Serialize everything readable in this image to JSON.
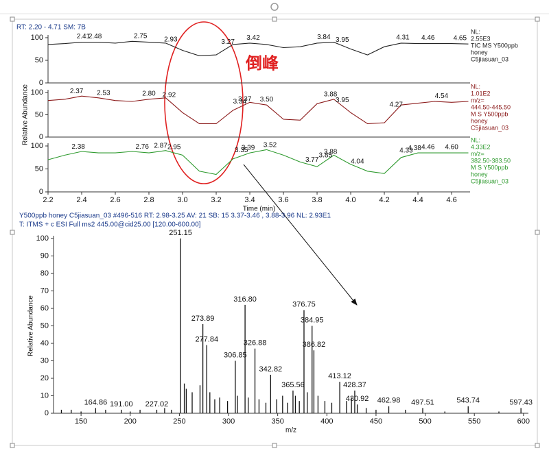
{
  "rt_header": "RT: 2.20 - 4.71   SM: 7B",
  "annotation": "倒峰",
  "chart_data": [
    {
      "type": "line",
      "color": "#222222",
      "xlim": [
        2.2,
        4.71
      ],
      "ylim": [
        0,
        100
      ],
      "yticks": [
        0,
        50,
        100
      ],
      "x": [
        2.2,
        2.3,
        2.4,
        2.5,
        2.6,
        2.7,
        2.8,
        2.9,
        3.0,
        3.1,
        3.2,
        3.3,
        3.4,
        3.5,
        3.6,
        3.7,
        3.8,
        3.9,
        4.0,
        4.1,
        4.2,
        4.3,
        4.4,
        4.5,
        4.6,
        4.7
      ],
      "values": [
        85,
        87,
        90,
        90,
        88,
        92,
        90,
        88,
        72,
        60,
        62,
        85,
        88,
        85,
        78,
        80,
        88,
        90,
        75,
        62,
        80,
        88,
        87,
        87,
        87,
        86
      ],
      "peak_labels": [
        2.41,
        2.48,
        2.75,
        2.93,
        3.27,
        3.42,
        3.84,
        3.95,
        4.31,
        4.46,
        4.65
      ],
      "info": [
        "NL:",
        "2.55E3",
        "TIC MS Y500ppb",
        " honey",
        "C5jiasuan_03"
      ]
    },
    {
      "type": "line",
      "color": "#8b1a1a",
      "xlim": [
        2.2,
        4.71
      ],
      "ylim": [
        0,
        100
      ],
      "yticks": [
        0,
        50,
        100
      ],
      "ylabel": "Relative Abundance",
      "x": [
        2.2,
        2.3,
        2.4,
        2.5,
        2.6,
        2.7,
        2.8,
        2.9,
        3.0,
        3.1,
        3.2,
        3.3,
        3.4,
        3.5,
        3.6,
        3.7,
        3.8,
        3.9,
        4.0,
        4.1,
        4.2,
        4.3,
        4.4,
        4.5,
        4.6,
        4.7
      ],
      "values": [
        82,
        85,
        92,
        88,
        82,
        80,
        85,
        88,
        55,
        30,
        30,
        60,
        78,
        72,
        40,
        38,
        75,
        85,
        55,
        30,
        32,
        72,
        76,
        80,
        78,
        80
      ],
      "peak_labels": [
        2.37,
        2.53,
        {
          "value": 2.8,
          "label": "2.80"
        },
        2.92,
        3.34,
        3.37,
        {
          "value": 3.5,
          "label": "3.50"
        },
        3.88,
        3.95,
        4.27,
        4.54
      ],
      "info": [
        "NL:",
        "1.01E2",
        "m/z=",
        "444.50-445.50",
        "M S Y500ppb",
        "honey",
        "C5jiasuan_03"
      ]
    },
    {
      "type": "line",
      "color": "#2e9a2e",
      "xlim": [
        2.2,
        4.71
      ],
      "ylim": [
        0,
        100
      ],
      "yticks": [
        0,
        50,
        100
      ],
      "xticks": [
        2.2,
        2.4,
        2.6,
        2.8,
        {
          "value": 3,
          "label": "3.0"
        },
        3.2,
        3.4,
        3.6,
        3.8,
        {
          "value": 4,
          "label": "4.0"
        },
        4.2,
        4.4,
        4.6
      ],
      "xlabel": "Time (min)",
      "x": [
        2.2,
        2.3,
        2.4,
        2.5,
        2.6,
        2.7,
        2.8,
        2.9,
        3.0,
        3.1,
        3.2,
        3.3,
        3.4,
        3.5,
        3.6,
        3.7,
        3.8,
        3.9,
        4.0,
        4.1,
        4.2,
        4.3,
        4.4,
        4.5,
        4.6,
        4.7
      ],
      "values": [
        70,
        80,
        88,
        85,
        85,
        88,
        85,
        90,
        80,
        45,
        38,
        72,
        85,
        92,
        80,
        65,
        55,
        80,
        60,
        45,
        40,
        75,
        85,
        85,
        85,
        85
      ],
      "peak_labels": [
        2.38,
        2.76,
        2.87,
        2.95,
        3.35,
        3.39,
        3.52,
        3.77,
        3.85,
        3.88,
        4.04,
        4.33,
        4.38,
        4.46,
        {
          "value": 4.6,
          "label": "4.60"
        }
      ],
      "info": [
        "NL:",
        "4.33E2",
        "m/z=",
        "382.50-383.50",
        "M S Y500ppb",
        "honey",
        "C5jiasuan_03"
      ]
    },
    {
      "type": "stick",
      "color": "#111111",
      "xlim": [
        122,
        605
      ],
      "ylim": [
        0,
        100
      ],
      "header": [
        "Y500ppb  honey C5jiasuan_03 #496-516  RT: 2.98-3.25  AV: 21  SB: 15 3.37-3.46 , 3.88-3.96  NL: 2.93E1",
        "T: ITMS + c ESI Full ms2 445.00@cid25.00 [120.00-600.00]"
      ],
      "xticks": [
        150,
        200,
        250,
        300,
        350,
        400,
        450,
        500,
        550,
        600
      ],
      "yticks": [
        0,
        10,
        20,
        30,
        40,
        50,
        60,
        70,
        80,
        90,
        100
      ],
      "xlabel": "m/z",
      "ylabel": "Relative Abundance",
      "x": [
        130,
        140,
        150,
        164.86,
        175,
        191,
        200,
        210,
        227.02,
        235,
        242,
        251.15,
        255,
        257,
        263,
        271,
        273.89,
        277.84,
        281,
        286,
        291,
        299,
        306.85,
        309,
        316.8,
        320,
        326.88,
        331,
        338,
        342.82,
        349,
        355,
        360,
        365.56,
        368,
        372,
        376.75,
        380,
        384.95,
        386.82,
        391,
        398,
        405,
        413.12,
        420,
        425,
        428.37,
        430.92,
        440,
        450,
        462.98,
        480,
        497.51,
        520,
        543.74,
        575,
        597.43
      ],
      "values": [
        2,
        2,
        1,
        3,
        2,
        2,
        1,
        2,
        2,
        3,
        2,
        100,
        17,
        14,
        12,
        16,
        51,
        39,
        12,
        8,
        9,
        7,
        30,
        10,
        62,
        9,
        37,
        8,
        6,
        22,
        8,
        10,
        6,
        13,
        10,
        7,
        59,
        12,
        50,
        36,
        10,
        7,
        6,
        18,
        7,
        9,
        13,
        5,
        3,
        2,
        4,
        2,
        3,
        1,
        4,
        1,
        3
      ],
      "peak_labels": [
        164.86,
        {
          "value": 191,
          "label": "191.00"
        },
        227.02,
        251.15,
        273.89,
        277.84,
        306.85,
        {
          "value": 316.8,
          "label": "316.80"
        },
        326.88,
        342.82,
        365.56,
        376.75,
        384.95,
        386.82,
        413.12,
        428.37,
        430.92,
        462.98,
        497.51,
        543.74,
        597.43
      ]
    }
  ]
}
